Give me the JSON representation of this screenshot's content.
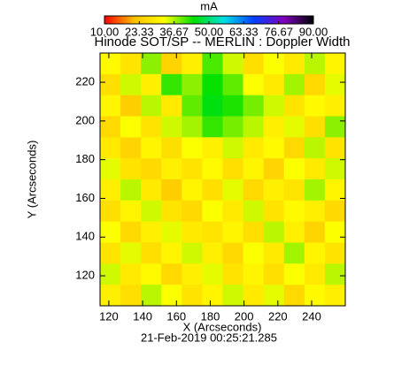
{
  "chart_data": {
    "type": "heatmap",
    "colorbar_label": "mA",
    "title": "Hinode SOT/SP -- MERLIN : Doppler Width",
    "xlabel": "X (Arcseconds)",
    "ylabel": "Y (Arcseconds)",
    "footer": "21-Feb-2019 00:25:21.285",
    "xlim": [
      114.8,
      259.9
    ],
    "ylim": [
      104.5,
      235.1
    ],
    "xticks": [
      120,
      140,
      160,
      180,
      200,
      220,
      240
    ],
    "yticks": [
      120,
      140,
      160,
      180,
      200,
      220
    ],
    "zlim": [
      10,
      90
    ],
    "zticks": [
      {
        "value": 10,
        "label": "10.00"
      },
      {
        "value": 23.33,
        "label": "23.33"
      },
      {
        "value": 36.67,
        "label": "36.67"
      },
      {
        "value": 50,
        "label": "50.00"
      },
      {
        "value": 63.33,
        "label": "63.33"
      },
      {
        "value": 76.67,
        "label": "76.67"
      },
      {
        "value": 90,
        "label": "90.00"
      }
    ],
    "colormap": [
      "#ff0000",
      "#ffc000",
      "#ffff00",
      "#00e000",
      "#00e0e0",
      "#0040ff",
      "#8000c0",
      "#000000"
    ],
    "z": [
      [
        32,
        28,
        38,
        25,
        30,
        41,
        35,
        27,
        33,
        29,
        36,
        31
      ],
      [
        27,
        35,
        30,
        42,
        38,
        44,
        40,
        33,
        29,
        37,
        26,
        34
      ],
      [
        31,
        24,
        36,
        29,
        40,
        45,
        43,
        39,
        35,
        28,
        32,
        30
      ],
      [
        26,
        33,
        28,
        35,
        37,
        42,
        39,
        36,
        30,
        34,
        27,
        38
      ],
      [
        29,
        25,
        31,
        27,
        33,
        30,
        35,
        29,
        32,
        26,
        36,
        28
      ],
      [
        34,
        28,
        26,
        30,
        28,
        32,
        27,
        31,
        25,
        33,
        29,
        35
      ],
      [
        30,
        36,
        29,
        24,
        31,
        27,
        34,
        26,
        30,
        28,
        37,
        31
      ],
      [
        27,
        31,
        35,
        28,
        26,
        33,
        29,
        35,
        28,
        32,
        30,
        26
      ],
      [
        33,
        26,
        30,
        34,
        29,
        28,
        31,
        27,
        36,
        30,
        25,
        33
      ],
      [
        28,
        34,
        27,
        31,
        35,
        30,
        26,
        33,
        29,
        37,
        31,
        28
      ],
      [
        35,
        29,
        32,
        26,
        30,
        34,
        28,
        31,
        27,
        33,
        29,
        36
      ],
      [
        30,
        27,
        36,
        33,
        28,
        31,
        35,
        29,
        34,
        26,
        32,
        30
      ]
    ]
  }
}
